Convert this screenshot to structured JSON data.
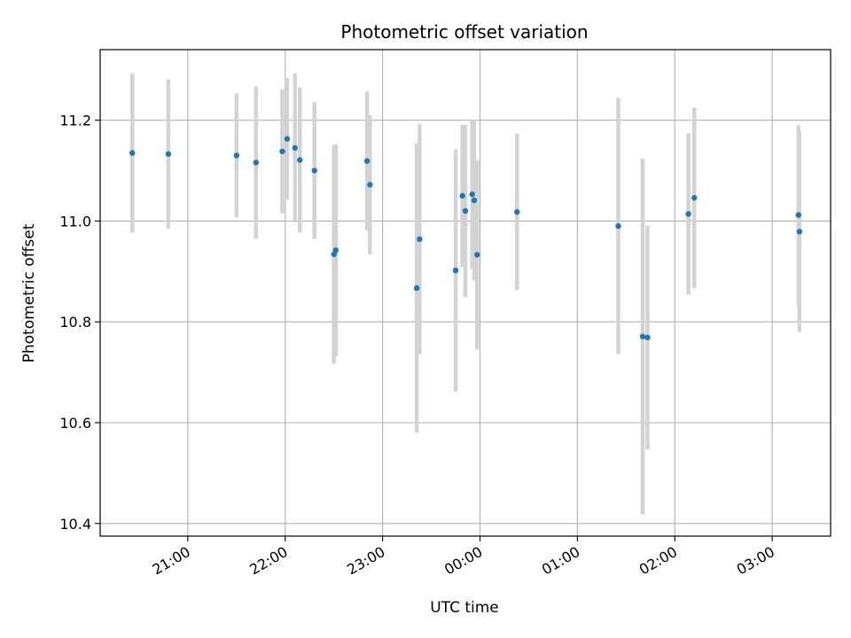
{
  "chart_data": {
    "type": "scatter",
    "title": "Photometric offset variation",
    "xlabel": "UTC time",
    "ylabel": "Photometric offset",
    "x_axis": {
      "unit": "hours relative to 00:00 UTC",
      "range": [
        -3.9,
        3.6
      ],
      "ticks": [
        -3,
        -2,
        -1,
        0,
        1,
        2,
        3
      ],
      "tick_labels": [
        "21:00",
        "22:00",
        "23:00",
        "00:00",
        "01:00",
        "02:00",
        "03:00"
      ]
    },
    "y_axis": {
      "range": [
        10.375,
        11.34
      ],
      "ticks": [
        10.4,
        10.6,
        10.8,
        11.0,
        11.2
      ],
      "tick_labels": [
        "10.4",
        "10.6",
        "10.8",
        "11.0",
        "11.2"
      ]
    },
    "grid": true,
    "colors": {
      "point": "#1f77b4",
      "errorbar": "#d3d3d3",
      "grid": "#b0b0b0"
    },
    "points": [
      {
        "x": -3.57,
        "y": 11.135,
        "err": 0.158
      },
      {
        "x": -3.2,
        "y": 11.133,
        "err": 0.148
      },
      {
        "x": -2.5,
        "y": 11.13,
        "err": 0.123
      },
      {
        "x": -2.3,
        "y": 11.116,
        "err": 0.151
      },
      {
        "x": -2.03,
        "y": 11.138,
        "err": 0.123
      },
      {
        "x": -1.98,
        "y": 11.163,
        "err": 0.121
      },
      {
        "x": -1.9,
        "y": 11.145,
        "err": 0.148
      },
      {
        "x": -1.85,
        "y": 11.121,
        "err": 0.144
      },
      {
        "x": -1.7,
        "y": 11.1,
        "err": 0.136
      },
      {
        "x": -1.5,
        "y": 10.934,
        "err": 0.217
      },
      {
        "x": -1.48,
        "y": 10.942,
        "err": 0.21
      },
      {
        "x": -1.16,
        "y": 11.119,
        "err": 0.138
      },
      {
        "x": -1.13,
        "y": 11.072,
        "err": 0.138
      },
      {
        "x": -0.65,
        "y": 10.867,
        "err": 0.287
      },
      {
        "x": -0.62,
        "y": 10.964,
        "err": 0.228
      },
      {
        "x": -0.25,
        "y": 10.902,
        "err": 0.24
      },
      {
        "x": -0.18,
        "y": 11.05,
        "err": 0.141
      },
      {
        "x": -0.15,
        "y": 11.02,
        "err": 0.171
      },
      {
        "x": -0.08,
        "y": 11.053,
        "err": 0.148
      },
      {
        "x": -0.06,
        "y": 11.041,
        "err": 0.159
      },
      {
        "x": -0.03,
        "y": 10.933,
        "err": 0.188
      },
      {
        "x": 0.38,
        "y": 11.018,
        "err": 0.155
      },
      {
        "x": 1.42,
        "y": 10.99,
        "err": 0.254
      },
      {
        "x": 1.67,
        "y": 10.771,
        "err": 0.353
      },
      {
        "x": 1.72,
        "y": 10.769,
        "err": 0.222
      },
      {
        "x": 2.14,
        "y": 11.014,
        "err": 0.16
      },
      {
        "x": 2.2,
        "y": 11.046,
        "err": 0.179
      },
      {
        "x": 3.27,
        "y": 11.012,
        "err": 0.178
      },
      {
        "x": 3.28,
        "y": 10.979,
        "err": 0.199
      }
    ]
  }
}
